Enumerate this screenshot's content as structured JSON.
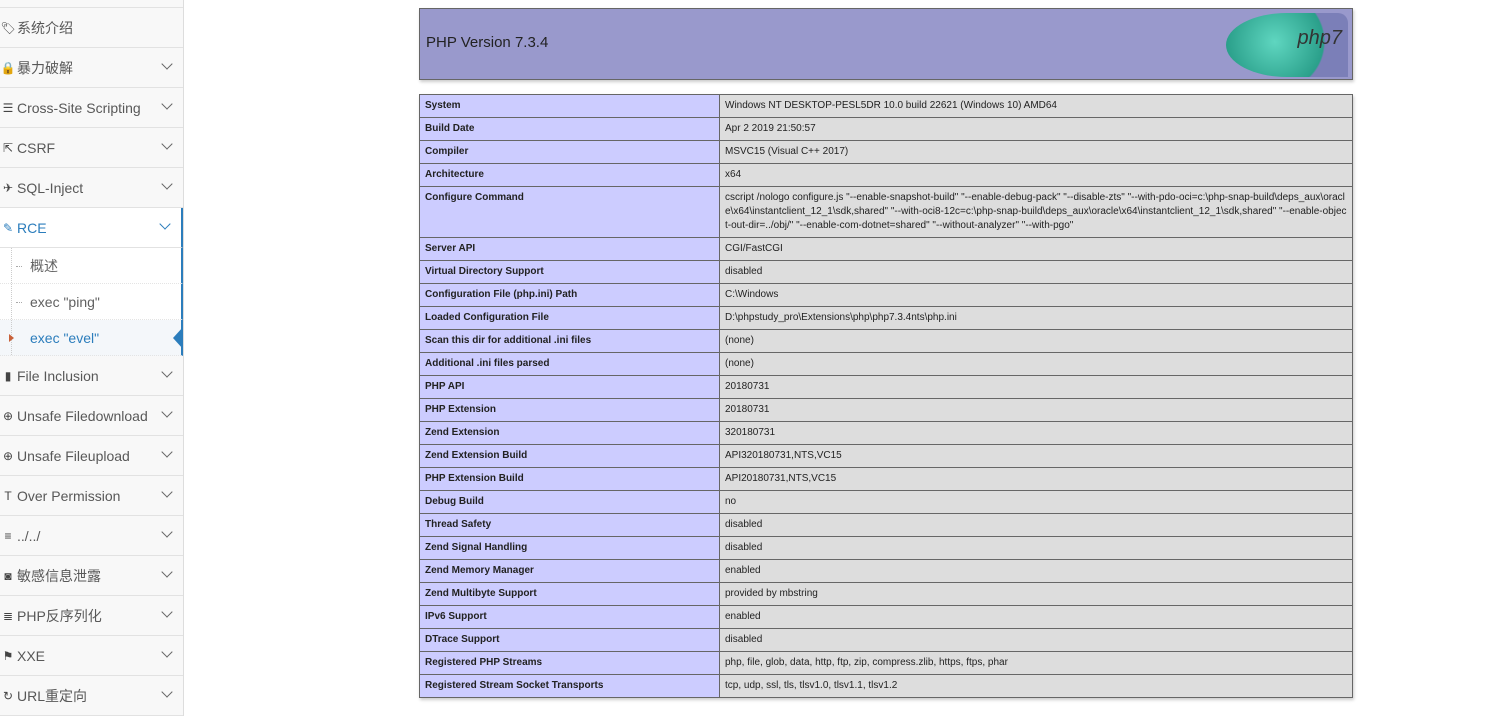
{
  "sidebar": {
    "items": [
      {
        "label": "",
        "icon": "none"
      },
      {
        "label": "系统介绍",
        "icon": "tags-icon",
        "chevron": false
      },
      {
        "label": "暴力破解",
        "icon": "lock-icon",
        "chevron": true
      },
      {
        "label": "Cross-Site Scripting",
        "icon": "list-icon",
        "chevron": true
      },
      {
        "label": "CSRF",
        "icon": "share-icon",
        "chevron": true
      },
      {
        "label": "SQL-Inject",
        "icon": "fighter-jet-icon",
        "chevron": true
      },
      {
        "label": "RCE",
        "icon": "pencil-icon",
        "chevron": true,
        "active": true
      },
      {
        "label": "File Inclusion",
        "icon": "file-icon",
        "chevron": true
      },
      {
        "label": "Unsafe Filedownload",
        "icon": "download-icon",
        "chevron": true
      },
      {
        "label": "Unsafe Fileupload",
        "icon": "upload-icon",
        "chevron": true
      },
      {
        "label": "Over Permission",
        "icon": "text-height-icon",
        "chevron": true
      },
      {
        "label": "../../",
        "icon": "align-left-icon",
        "chevron": true
      },
      {
        "label": "敏感信息泄露",
        "icon": "camera-icon",
        "chevron": true
      },
      {
        "label": "PHP反序列化",
        "icon": "align-justify-icon",
        "chevron": true
      },
      {
        "label": "XXE",
        "icon": "flag-icon",
        "chevron": true
      },
      {
        "label": "URL重定向",
        "icon": "refresh-icon",
        "chevron": true
      }
    ],
    "rce_sub": [
      "概述",
      "exec \"ping\"",
      "exec \"evel\""
    ],
    "rce_current": 2
  },
  "phpinfo": {
    "title": "PHP Version 7.3.4",
    "logo": "php7",
    "rows": [
      [
        "System",
        "Windows NT DESKTOP-PESL5DR 10.0 build 22621 (Windows 10) AMD64"
      ],
      [
        "Build Date",
        "Apr 2 2019 21:50:57"
      ],
      [
        "Compiler",
        "MSVC15 (Visual C++ 2017)"
      ],
      [
        "Architecture",
        "x64"
      ],
      [
        "Configure Command",
        "cscript /nologo configure.js \"--enable-snapshot-build\" \"--enable-debug-pack\" \"--disable-zts\" \"--with-pdo-oci=c:\\php-snap-build\\deps_aux\\oracle\\x64\\instantclient_12_1\\sdk,shared\" \"--with-oci8-12c=c:\\php-snap-build\\deps_aux\\oracle\\x64\\instantclient_12_1\\sdk,shared\" \"--enable-object-out-dir=../obj/\" \"--enable-com-dotnet=shared\" \"--without-analyzer\" \"--with-pgo\""
      ],
      [
        "Server API",
        "CGI/FastCGI"
      ],
      [
        "Virtual Directory Support",
        "disabled"
      ],
      [
        "Configuration File (php.ini) Path",
        "C:\\Windows"
      ],
      [
        "Loaded Configuration File",
        "D:\\phpstudy_pro\\Extensions\\php\\php7.3.4nts\\php.ini"
      ],
      [
        "Scan this dir for additional .ini files",
        "(none)"
      ],
      [
        "Additional .ini files parsed",
        "(none)"
      ],
      [
        "PHP API",
        "20180731"
      ],
      [
        "PHP Extension",
        "20180731"
      ],
      [
        "Zend Extension",
        "320180731"
      ],
      [
        "Zend Extension Build",
        "API320180731,NTS,VC15"
      ],
      [
        "PHP Extension Build",
        "API20180731,NTS,VC15"
      ],
      [
        "Debug Build",
        "no"
      ],
      [
        "Thread Safety",
        "disabled"
      ],
      [
        "Zend Signal Handling",
        "disabled"
      ],
      [
        "Zend Memory Manager",
        "enabled"
      ],
      [
        "Zend Multibyte Support",
        "provided by mbstring"
      ],
      [
        "IPv6 Support",
        "enabled"
      ],
      [
        "DTrace Support",
        "disabled"
      ],
      [
        "Registered PHP Streams",
        "php, file, glob, data, http, ftp, zip, compress.zlib, https, ftps, phar"
      ],
      [
        "Registered Stream Socket Transports",
        "tcp, udp, ssl, tls, tlsv1.0, tlsv1.1, tlsv1.2"
      ]
    ]
  },
  "colors": {
    "accent": "#2b7dbc",
    "header": "#9999cc",
    "key": "#ccccff",
    "value": "#dddddd"
  }
}
